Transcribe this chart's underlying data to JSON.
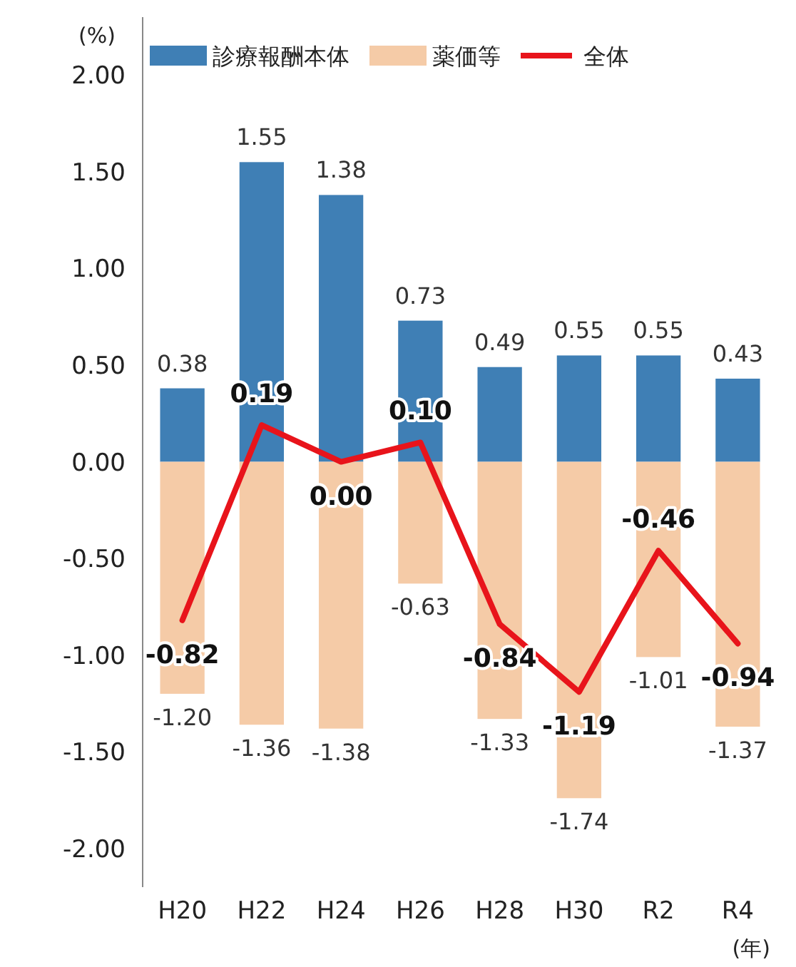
{
  "chart_data": {
    "type": "bar",
    "stacked": true,
    "ylabel": "(%)",
    "xlabel": "(年)",
    "legend": "top",
    "categories": [
      "H20",
      "H22",
      "H24",
      "H26",
      "H28",
      "H30",
      "R2",
      "R4"
    ],
    "ylim": [
      -2.2,
      2.3
    ],
    "yticks": [
      {
        "value": -2,
        "label": "-2.00"
      },
      {
        "value": -1.5,
        "label": "-1.50"
      },
      {
        "value": -1,
        "label": "-1.00"
      },
      {
        "value": -0.5,
        "label": "-0.50"
      },
      {
        "value": 0,
        "label": "0.00"
      },
      {
        "value": 0.5,
        "label": "0.50"
      },
      {
        "value": 1,
        "label": "1.00"
      },
      {
        "value": 1.5,
        "label": "1.50"
      },
      {
        "value": 2,
        "label": "2.00"
      }
    ],
    "series": [
      {
        "name": "診療報酬本体",
        "color": "#3f7fb5",
        "values": [
          0.38,
          1.55,
          1.38,
          0.73,
          0.49,
          0.55,
          0.55,
          0.43
        ],
        "value_labels": [
          "0.38",
          "1.55",
          "1.38",
          "0.73",
          "0.49",
          "0.55",
          "0.55",
          "0.43"
        ]
      },
      {
        "name": "薬価等",
        "color": "#f5cba7",
        "values": [
          -1.2,
          -1.36,
          -1.38,
          -0.63,
          -1.33,
          -1.74,
          -1.01,
          -1.37
        ],
        "value_labels": [
          "-1.20",
          "-1.36",
          "-1.38",
          "-0.63",
          "-1.33",
          "-1.74",
          "-1.01",
          "-1.37"
        ]
      },
      {
        "name": "全体",
        "type": "line",
        "color": "#e8141b",
        "values": [
          -0.82,
          0.19,
          0.0,
          0.1,
          -0.84,
          -1.19,
          -0.46,
          -0.94
        ],
        "value_labels": [
          "-0.82",
          "0.19",
          "0.00",
          "0.10",
          "-0.84",
          "-1.19",
          "-0.46",
          "-0.94"
        ]
      }
    ]
  }
}
